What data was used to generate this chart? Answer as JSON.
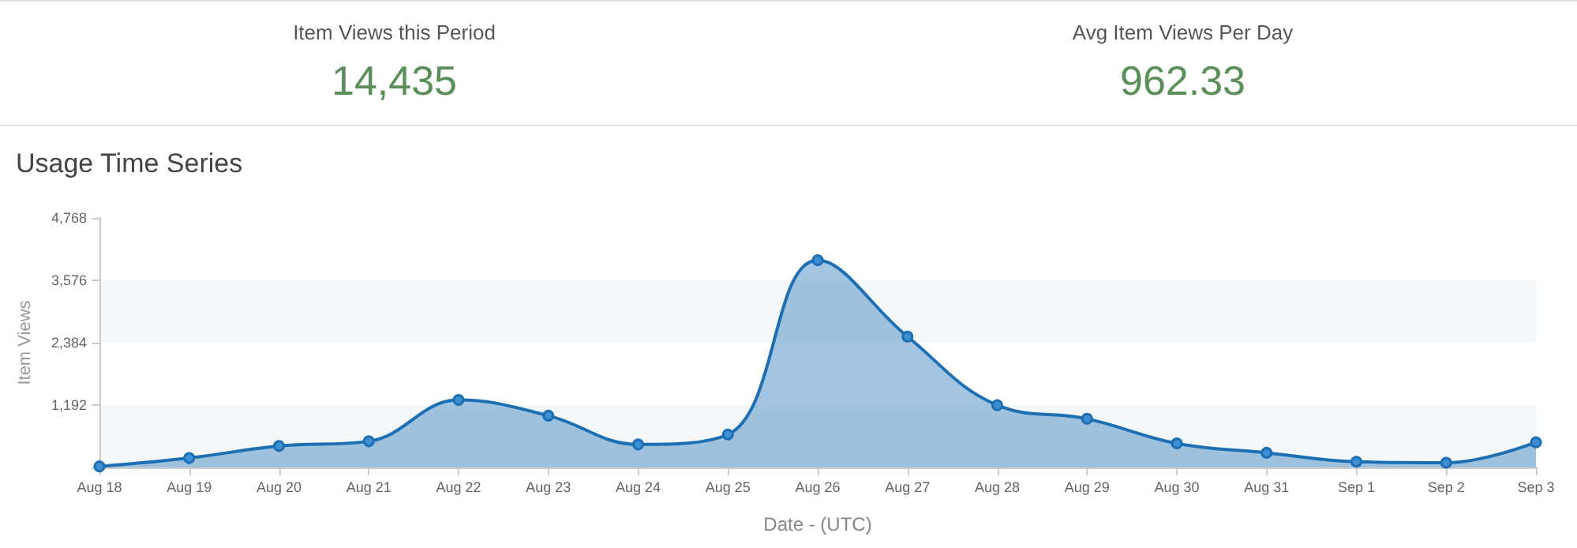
{
  "chart_data": [
    {
      "type": "other",
      "title": "Item Views this Period",
      "annotations": [
        "14,435"
      ]
    },
    {
      "type": "other",
      "title": "Avg Item Views Per Day",
      "annotations": [
        "962.33"
      ]
    },
    {
      "type": "area",
      "title": "Usage Time Series",
      "xlabel": "Date - (UTC)",
      "ylabel": "Item Views",
      "categories": [
        "Aug 18",
        "Aug 19",
        "Aug 20",
        "Aug 21",
        "Aug 22",
        "Aug 23",
        "Aug 24",
        "Aug 25",
        "Aug 26",
        "Aug 27",
        "Aug 28",
        "Aug 29",
        "Aug 30",
        "Aug 31",
        "Sep 1",
        "Sep 2",
        "Sep 3"
      ],
      "series": [
        {
          "color": "#1c6fb3",
          "values": [
            20,
            180,
            410,
            500,
            1290,
            990,
            440,
            630,
            3960,
            2500,
            1190,
            930,
            460,
            280,
            110,
            90,
            480
          ]
        }
      ],
      "bands": [
        {
          "axis": "y",
          "from": 0,
          "to": 1192,
          "color": "#f5f8fb"
        },
        {
          "axis": "y",
          "from": 2384,
          "to": 3576,
          "color": "#f5f8fb"
        }
      ],
      "ylim": [
        0,
        4768
      ],
      "yticks": [
        {
          "value": 0,
          "label": null
        },
        {
          "value": 1192,
          "label": "1,192"
        },
        {
          "value": 2384,
          "label": "2,384"
        },
        {
          "value": 3576,
          "label": "3,576"
        },
        {
          "value": 4768,
          "label": "4,768"
        }
      ],
      "marker": "circle"
    }
  ]
}
